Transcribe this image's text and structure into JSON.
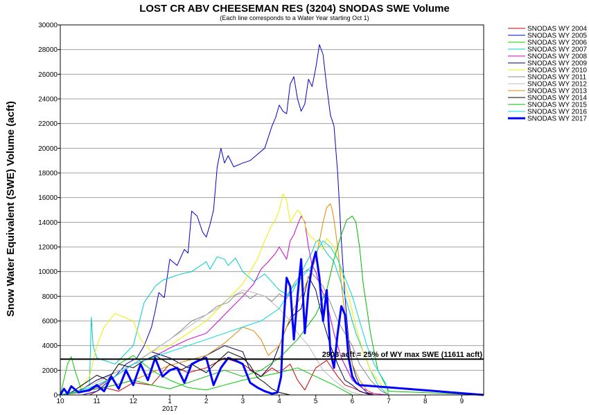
{
  "chart_data": {
    "type": "line",
    "title": "LOST CR ABV CHEESEMAN RES (3204) SNODAS SWE Volume",
    "subtitle": "(Each line corresponds to a Water Year starting Oct 1)",
    "ylabel": "Snow Water Equivalent (SWE) Volume (acft)",
    "xlabel": "",
    "ylim": [
      0,
      30000
    ],
    "yticks": [
      "0",
      "2000",
      "4000",
      "6000",
      "8000",
      "10000",
      "12000",
      "14000",
      "16000",
      "18000",
      "20000",
      "22000",
      "24000",
      "26000",
      "28000",
      "30000"
    ],
    "xlim": [
      10,
      21.6
    ],
    "xticks": [
      {
        "value": 10,
        "label": "10"
      },
      {
        "value": 11,
        "label": "11"
      },
      {
        "value": 12,
        "label": "12"
      },
      {
        "value": 13,
        "label": "1"
      },
      {
        "value": 14,
        "label": "2"
      },
      {
        "value": 15,
        "label": "3"
      },
      {
        "value": 16,
        "label": "4"
      },
      {
        "value": 17,
        "label": "5"
      },
      {
        "value": 18,
        "label": "6"
      },
      {
        "value": 19,
        "label": "7"
      },
      {
        "value": 20,
        "label": "8"
      },
      {
        "value": 21,
        "label": "9"
      }
    ],
    "year_label": "2017",
    "grid": true,
    "legend_position": "right",
    "reference_line": {
      "value": 2903,
      "label": "2903 acft = 25% of WY max SWE (11611 acft)",
      "color": "#000000"
    },
    "series": [
      {
        "name": "SNODAS WY 2004",
        "color": "#cc0000",
        "bold": false,
        "x": [
          10.0,
          10.8,
          11.2,
          11.6,
          12.0,
          12.5,
          13.0,
          13.5,
          14.0,
          14.5,
          15.0,
          15.5,
          15.8,
          16.0,
          16.3,
          16.5,
          16.7,
          17.0,
          17.3,
          17.6,
          17.8,
          18.0,
          18.3,
          18.6,
          19.0,
          21.6
        ],
        "y": [
          0,
          0,
          600,
          300,
          1000,
          800,
          2500,
          1800,
          2200,
          3000,
          2500,
          1500,
          2200,
          1800,
          2500,
          1200,
          400,
          2200,
          2800,
          1500,
          800,
          600,
          200,
          0,
          0,
          0
        ]
      },
      {
        "name": "SNODAS WY 2005",
        "color": "#0000cc",
        "bold": false,
        "x": [
          10.0,
          10.6,
          11.0,
          11.2,
          11.5,
          11.8,
          12.1,
          12.3,
          12.5,
          12.6,
          12.7,
          12.8,
          12.85,
          13.0,
          13.2,
          13.4,
          13.5,
          13.6,
          13.75,
          13.9,
          14.0,
          14.1,
          14.2,
          14.3,
          14.4,
          14.5,
          14.6,
          14.75,
          15.0,
          15.2,
          15.4,
          15.6,
          15.8,
          15.9,
          16.0,
          16.1,
          16.2,
          16.3,
          16.4,
          16.5,
          16.6,
          16.7,
          16.8,
          16.9,
          17.0,
          17.1,
          17.2,
          17.3,
          17.4,
          17.5,
          17.6,
          17.7,
          17.8,
          17.9,
          18.0,
          18.1,
          18.2,
          18.4,
          18.6,
          21.6
        ],
        "y": [
          0,
          0,
          300,
          800,
          1500,
          2500,
          3000,
          4000,
          5500,
          6800,
          8300,
          8000,
          7900,
          11000,
          10500,
          11800,
          11500,
          14900,
          14500,
          13200,
          12800,
          13800,
          15000,
          18500,
          20000,
          18800,
          19400,
          18500,
          18800,
          19000,
          19500,
          20000,
          21800,
          22500,
          23500,
          23000,
          22800,
          25200,
          25800,
          24000,
          23000,
          23600,
          25600,
          25000,
          26500,
          28400,
          27600,
          25000,
          22700,
          21800,
          18000,
          12500,
          8000,
          4500,
          2500,
          1500,
          800,
          200,
          0,
          0
        ]
      },
      {
        "name": "SNODAS WY 2006",
        "color": "#00cc00",
        "bold": false,
        "x": [
          10.0,
          10.2,
          10.3,
          10.4,
          10.6,
          11.0,
          11.3,
          11.6,
          12.0,
          12.5,
          13.0,
          13.5,
          14.0,
          14.5,
          15.0,
          15.5,
          16.0,
          16.5,
          17.0,
          17.5,
          17.8,
          18.0,
          18.3,
          21.6
        ],
        "y": [
          0,
          2500,
          3100,
          2000,
          200,
          800,
          1200,
          2500,
          3200,
          2000,
          1200,
          600,
          400,
          800,
          1200,
          1500,
          1800,
          2200,
          1500,
          800,
          300,
          0,
          0,
          0
        ]
      },
      {
        "name": "SNODAS WY 2007",
        "color": "#00cccc",
        "bold": false,
        "x": [
          10.0,
          10.5,
          10.8,
          10.85,
          10.9,
          11.0,
          11.5,
          12.0,
          12.3,
          12.6,
          12.8,
          13.0,
          13.3,
          13.6,
          14.0,
          14.1,
          14.3,
          14.5,
          14.6,
          14.8,
          15.0,
          15.3,
          15.6,
          16.0,
          16.3,
          16.5,
          16.7,
          16.9,
          17.0,
          17.1,
          17.2,
          17.3,
          17.5,
          17.7,
          17.9,
          18.1,
          18.3,
          18.5,
          18.7,
          18.9,
          19.0,
          21.6
        ],
        "y": [
          0,
          200,
          800,
          6300,
          4000,
          3000,
          2500,
          4000,
          7500,
          8800,
          9300,
          9500,
          9800,
          10000,
          10800,
          10200,
          11200,
          11000,
          10500,
          11100,
          10000,
          9200,
          9800,
          8500,
          8000,
          9200,
          10500,
          11600,
          12400,
          12600,
          12000,
          11500,
          10800,
          9000,
          7000,
          5000,
          3500,
          2000,
          800,
          200,
          0,
          0
        ]
      },
      {
        "name": "SNODAS WY 2008",
        "color": "#cc00cc",
        "bold": false,
        "x": [
          10.0,
          10.8,
          11.5,
          12.0,
          12.5,
          13.0,
          13.5,
          14.0,
          14.5,
          15.0,
          15.3,
          15.5,
          15.7,
          15.9,
          16.0,
          16.2,
          16.3,
          16.4,
          16.5,
          16.6,
          16.7,
          16.8,
          16.9,
          17.0,
          17.1,
          17.3,
          17.5,
          17.7,
          18.0,
          18.3,
          18.6,
          19.0,
          21.6
        ],
        "y": [
          0,
          300,
          1500,
          2500,
          3000,
          3800,
          4500,
          5000,
          6500,
          8000,
          9000,
          10200,
          10800,
          11500,
          12000,
          11000,
          12500,
          13000,
          13800,
          14500,
          14000,
          12000,
          10500,
          10000,
          9000,
          7500,
          5000,
          3000,
          1200,
          500,
          100,
          0,
          0
        ]
      },
      {
        "name": "SNODAS WY 2009",
        "color": "#000055",
        "bold": false,
        "x": [
          10.0,
          10.5,
          11.0,
          11.5,
          12.0,
          12.5,
          13.0,
          13.5,
          14.0,
          14.5,
          15.0,
          15.2,
          15.5,
          15.8,
          16.0,
          16.2,
          16.4,
          16.6,
          16.8,
          17.0,
          17.2,
          17.4,
          17.6,
          17.8,
          18.0,
          18.2,
          18.5,
          21.6
        ],
        "y": [
          0,
          300,
          1200,
          1800,
          2500,
          3500,
          3000,
          2200,
          3200,
          4000,
          3500,
          2000,
          1500,
          2500,
          4000,
          5500,
          6500,
          7000,
          9600,
          8500,
          6000,
          4000,
          2500,
          1200,
          800,
          300,
          0,
          0
        ]
      },
      {
        "name": "SNODAS WY 2010",
        "color": "#eeee00",
        "bold": false,
        "x": [
          10.0,
          10.5,
          10.8,
          11.0,
          11.2,
          11.5,
          12.0,
          12.2,
          12.5,
          13.0,
          13.5,
          14.0,
          14.5,
          15.0,
          15.2,
          15.4,
          15.6,
          15.8,
          15.9,
          16.0,
          16.1,
          16.2,
          16.3,
          16.5,
          16.6,
          16.8,
          17.0,
          17.2,
          17.3,
          17.5,
          17.7,
          17.9,
          18.1,
          18.3,
          18.5,
          18.8,
          19.0,
          21.6
        ],
        "y": [
          0,
          300,
          1500,
          4000,
          5500,
          6600,
          6000,
          4500,
          3500,
          4000,
          5000,
          6000,
          7500,
          9000,
          10000,
          11000,
          12500,
          13800,
          14200,
          15000,
          16300,
          15800,
          14000,
          15000,
          14700,
          13000,
          12500,
          11800,
          12700,
          12000,
          10000,
          8000,
          5500,
          3500,
          2000,
          800,
          0,
          0
        ]
      },
      {
        "name": "SNODAS WY 2011",
        "color": "#888888",
        "bold": false,
        "x": [
          10.0,
          10.5,
          11.0,
          11.5,
          12.0,
          12.5,
          13.0,
          13.3,
          13.6,
          14.0,
          14.3,
          14.6,
          14.8,
          15.0,
          15.2,
          15.4,
          15.6,
          15.8,
          16.0,
          16.2,
          16.4,
          16.6,
          16.8,
          17.0,
          17.2,
          17.4,
          17.6,
          17.8,
          18.0,
          18.2,
          18.5,
          18.8,
          19.0,
          21.6
        ],
        "y": [
          0,
          200,
          600,
          1500,
          2500,
          3500,
          4500,
          5200,
          6000,
          6500,
          7200,
          7500,
          8100,
          8300,
          7800,
          8200,
          8000,
          7600,
          8200,
          7800,
          9000,
          9800,
          10200,
          9500,
          8800,
          7500,
          6000,
          5000,
          4000,
          2500,
          1200,
          300,
          0,
          0
        ]
      },
      {
        "name": "SNODAS WY 2012",
        "color": "#bbbbbb",
        "bold": false,
        "x": [
          10.0,
          10.5,
          11.0,
          11.5,
          12.0,
          12.5,
          13.0,
          13.5,
          14.0,
          14.3,
          14.6,
          15.0,
          15.3,
          15.6,
          16.0,
          16.3,
          16.5,
          16.8,
          17.0,
          17.2,
          17.5,
          17.8,
          18.0,
          18.3,
          21.6
        ],
        "y": [
          0,
          400,
          1000,
          1800,
          2500,
          3500,
          4500,
          5500,
          6500,
          7000,
          7800,
          8500,
          8300,
          8000,
          7000,
          6000,
          5000,
          4000,
          3000,
          2000,
          1200,
          500,
          200,
          0,
          0
        ]
      },
      {
        "name": "SNODAS WY 2013",
        "color": "#dd8800",
        "bold": false,
        "x": [
          10.0,
          10.5,
          11.0,
          11.5,
          12.0,
          12.5,
          13.0,
          13.5,
          14.0,
          14.5,
          15.0,
          15.3,
          15.5,
          15.7,
          16.0,
          16.2,
          16.4,
          16.6,
          16.8,
          17.0,
          17.1,
          17.2,
          17.3,
          17.4,
          17.45,
          17.5,
          17.6,
          17.7,
          17.8,
          17.9,
          18.0,
          18.2,
          18.4,
          18.6,
          21.6
        ],
        "y": [
          0,
          200,
          500,
          800,
          1200,
          1800,
          2400,
          2800,
          3200,
          4200,
          5500,
          5200,
          4500,
          3200,
          4000,
          5500,
          7000,
          8000,
          9500,
          11000,
          12500,
          14000,
          15200,
          15500,
          15000,
          14200,
          12000,
          9000,
          6500,
          4000,
          2500,
          1200,
          400,
          0,
          0
        ]
      },
      {
        "name": "SNODAS WY 2014",
        "color": "#000000",
        "bold": false,
        "x": [
          10.0,
          10.3,
          10.6,
          11.0,
          11.3,
          11.6,
          12.0,
          12.3,
          12.6,
          13.0,
          13.3,
          13.6,
          14.0,
          14.3,
          14.6,
          15.0,
          15.2,
          15.4,
          15.6,
          15.8,
          16.0,
          16.3,
          16.6,
          17.0,
          17.3,
          17.6,
          17.9,
          18.2,
          21.6
        ],
        "y": [
          0,
          200,
          800,
          1600,
          1200,
          2500,
          2200,
          2800,
          3200,
          2500,
          2000,
          2500,
          1800,
          2700,
          3500,
          3000,
          2400,
          1400,
          1000,
          500,
          200,
          0,
          0,
          0,
          0,
          0,
          0,
          0,
          0
        ]
      },
      {
        "name": "SNODAS WY 2015",
        "color": "#00bb00",
        "bold": false,
        "x": [
          10.0,
          10.5,
          11.0,
          11.5,
          12.0,
          12.5,
          13.0,
          13.5,
          14.0,
          14.5,
          15.0,
          15.5,
          16.0,
          16.5,
          17.0,
          17.3,
          17.5,
          17.7,
          17.85,
          18.0,
          18.1,
          18.2,
          18.3,
          18.5,
          18.7,
          19.0,
          21.6
        ],
        "y": [
          0,
          200,
          500,
          800,
          1200,
          800,
          500,
          1000,
          1500,
          2000,
          1500,
          2000,
          3000,
          4500,
          6500,
          8500,
          11000,
          13000,
          14200,
          14500,
          14000,
          12000,
          9000,
          5000,
          2000,
          300,
          0
        ]
      },
      {
        "name": "SNODAS WY 2016",
        "color": "#00dddd",
        "bold": false,
        "x": [
          10.0,
          10.5,
          11.0,
          11.5,
          12.0,
          12.5,
          13.0,
          13.5,
          14.0,
          14.5,
          15.0,
          15.5,
          16.0,
          16.3,
          16.6,
          16.9,
          17.0,
          17.2,
          17.4,
          17.6,
          17.8,
          18.0,
          18.2,
          18.4,
          18.6,
          18.9,
          19.0,
          21.6
        ],
        "y": [
          0,
          300,
          800,
          1500,
          2500,
          3000,
          3500,
          4000,
          4500,
          5000,
          5500,
          6000,
          7000,
          8500,
          9500,
          10500,
          11500,
          12500,
          12000,
          11000,
          9500,
          8000,
          6000,
          4000,
          2500,
          1000,
          0,
          0
        ]
      },
      {
        "name": "SNODAS WY 2017",
        "color": "#0000ff",
        "bold": true,
        "x": [
          10.0,
          10.1,
          10.2,
          10.3,
          10.5,
          10.8,
          11.0,
          11.2,
          11.4,
          11.6,
          11.8,
          12.0,
          12.2,
          12.4,
          12.6,
          12.8,
          13.0,
          13.2,
          13.4,
          13.6,
          13.8,
          14.0,
          14.2,
          14.4,
          14.6,
          14.8,
          15.0,
          15.2,
          15.4,
          15.6,
          15.8,
          15.95,
          16.05,
          16.1,
          16.2,
          16.3,
          16.4,
          16.5,
          16.6,
          16.7,
          16.8,
          16.9,
          17.0,
          17.1,
          17.2,
          17.3,
          17.4,
          17.5,
          17.6,
          17.7,
          17.8,
          17.9,
          18.0,
          18.1,
          18.2,
          21.6
        ],
        "y": [
          0,
          500,
          100,
          700,
          200,
          400,
          800,
          300,
          1500,
          500,
          2000,
          800,
          2500,
          1200,
          3000,
          1500,
          2000,
          2200,
          1000,
          2500,
          2800,
          3000,
          800,
          2200,
          3000,
          2800,
          2500,
          1000,
          600,
          300,
          100,
          200,
          1500,
          5000,
          9500,
          8800,
          4500,
          8000,
          11000,
          5000,
          8500,
          10500,
          11600,
          9500,
          6000,
          8500,
          3500,
          2200,
          5000,
          7200,
          6500,
          3000,
          1500,
          1000,
          800,
          0
        ]
      }
    ]
  }
}
